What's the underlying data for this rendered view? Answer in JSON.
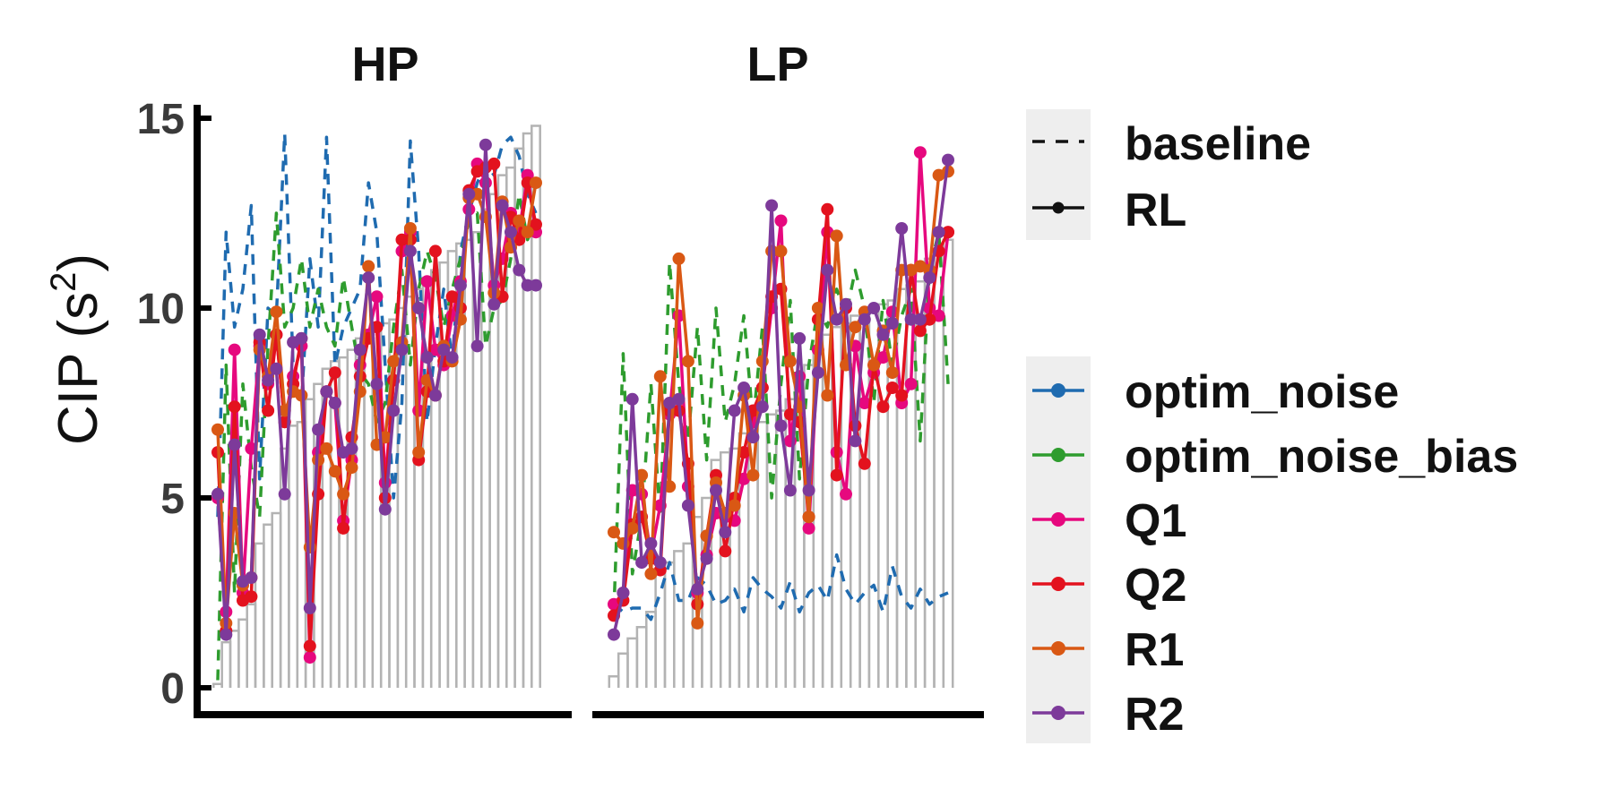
{
  "chart_data": {
    "type": "line",
    "ylabel_main": "CIP (s",
    "ylabel_sup": "2",
    "ylabel_close": ")",
    "ylim": [
      0,
      15
    ],
    "yticks": [
      0,
      5,
      10,
      15
    ],
    "ytick_labels": [
      "0",
      "5",
      "10",
      "15"
    ],
    "panels": [
      {
        "title": "HP",
        "bars": [
          0.1,
          1.2,
          1.5,
          1.8,
          2.2,
          3.8,
          4.3,
          4.6,
          6.3,
          6.9,
          7.0,
          7.6,
          8.0,
          8.4,
          8.6,
          8.7,
          8.9,
          9.2,
          9.3,
          9.5,
          9.6,
          9.7,
          10.0,
          10.3,
          10.5,
          10.8,
          11.0,
          11.2,
          11.5,
          11.7,
          11.8,
          12.0,
          12.6,
          13.0,
          13.5,
          13.7,
          14.2,
          14.6,
          14.8
        ],
        "series": [
          {
            "name": "optim_noise",
            "style": "dashed",
            "values": [
              4.5,
              12.0,
              9.5,
              10.5,
              12.7,
              5.5,
              10.0,
              9.8,
              14.6,
              8.5,
              7.5,
              11.3,
              9.5,
              14.5,
              8.5,
              9.5,
              10.0,
              10.5,
              13.3,
              12.0,
              8.5,
              5.0,
              7.5,
              14.4,
              11.5,
              7.0,
              9.0,
              10.5,
              8.6,
              11.5,
              12.5,
              13.3,
              13.8,
              13.5,
              14.3,
              14.5,
              14.0,
              13.0,
              12.5
            ]
          },
          {
            "name": "optim_noise_bias",
            "style": "dashed",
            "values": [
              0.2,
              8.5,
              2.5,
              8.0,
              5.8,
              4.5,
              9.0,
              12.5,
              9.5,
              10.0,
              11.3,
              9.5,
              10.5,
              9.5,
              9.0,
              10.8,
              9.5,
              8.3,
              8.0,
              7.0,
              7.5,
              9.5,
              11.0,
              8.5,
              10.5,
              11.5,
              10.8,
              9.5,
              10.5,
              11.3,
              12.3,
              12.5,
              9.0,
              10.0,
              10.2,
              11.3,
              13.0,
              11.8,
              12.3
            ]
          },
          {
            "name": "Q1",
            "style": "solid",
            "values": [
              5.0,
              2.0,
              8.9,
              2.5,
              6.3,
              9.0,
              8.0,
              9.3,
              7.0,
              8.2,
              9.0,
              0.8,
              6.2,
              7.8,
              7.5,
              4.4,
              6.0,
              8.5,
              9.3,
              10.3,
              5.4,
              8.1,
              11.5,
              12.0,
              7.3,
              10.7,
              8.9,
              8.5,
              9.8,
              10.7,
              12.6,
              13.8,
              13.3,
              10.6,
              11.3,
              12.5,
              12.0,
              13.5,
              12.0
            ]
          },
          {
            "name": "Q2",
            "style": "solid",
            "values": [
              6.2,
              1.5,
              7.4,
              2.3,
              2.4,
              9.1,
              7.3,
              9.3,
              7.0,
              8.0,
              9.2,
              1.1,
              5.1,
              7.8,
              8.3,
              4.2,
              6.6,
              8.2,
              9.2,
              9.5,
              5.0,
              8.1,
              11.8,
              11.8,
              6.0,
              7.8,
              11.5,
              8.6,
              10.3,
              10.0,
              13.1,
              13.6,
              13.7,
              13.8,
              10.3,
              12.4,
              11.8,
              13.3,
              12.2
            ]
          },
          {
            "name": "R1",
            "style": "solid",
            "values": [
              6.8,
              1.7,
              4.6,
              2.7,
              2.9,
              8.9,
              8.2,
              9.9,
              7.3,
              7.8,
              7.7,
              3.7,
              6.0,
              6.3,
              5.7,
              5.1,
              5.8,
              7.8,
              11.1,
              6.4,
              6.6,
              8.6,
              9.1,
              12.1,
              6.2,
              8.1,
              7.7,
              9.0,
              8.6,
              9.7,
              12.9,
              13.0,
              12.4,
              10.4,
              12.8,
              11.6,
              12.3,
              12.0,
              13.3
            ]
          },
          {
            "name": "R2",
            "style": "solid",
            "values": [
              5.1,
              1.4,
              6.4,
              2.8,
              2.9,
              9.3,
              8.1,
              8.4,
              5.1,
              9.1,
              9.2,
              2.1,
              6.8,
              7.8,
              7.5,
              6.2,
              6.3,
              8.9,
              10.8,
              8.0,
              4.7,
              7.3,
              8.9,
              11.5,
              10.0,
              8.7,
              7.7,
              8.9,
              8.7,
              10.6,
              13.0,
              9.0,
              14.3,
              10.1,
              12.7,
              12.0,
              11.0,
              10.6,
              10.6
            ]
          }
        ]
      },
      {
        "title": "LP",
        "bars": [
          0.3,
          0.9,
          1.3,
          1.6,
          2.0,
          3.0,
          3.3,
          3.6,
          3.8,
          4.5,
          5.0,
          6.0,
          6.2,
          6.3,
          6.7,
          6.8,
          7.0,
          7.2,
          7.3,
          7.6,
          8.0,
          8.5,
          9.0,
          9.3,
          9.5,
          9.6,
          9.8,
          9.8,
          10.0,
          10.1,
          10.2,
          10.5,
          10.6,
          10.7,
          11.3,
          11.5,
          11.8
        ],
        "series": [
          {
            "name": "optim_noise",
            "style": "dashed",
            "values": [
              2.2,
              2.0,
              2.1,
              2.1,
              1.8,
              2.5,
              3.3,
              2.3,
              2.3,
              2.9,
              2.7,
              2.2,
              2.3,
              2.6,
              2.0,
              2.9,
              2.6,
              2.4,
              2.1,
              2.8,
              2.0,
              2.5,
              2.7,
              2.3,
              3.5,
              2.6,
              2.2,
              2.5,
              2.7,
              2.0,
              3.2,
              2.4,
              2.1,
              2.6,
              2.2,
              2.4,
              2.5
            ]
          },
          {
            "name": "optim_noise_bias",
            "style": "dashed",
            "values": [
              2.0,
              8.8,
              3.0,
              4.5,
              8.0,
              4.5,
              11.2,
              8.0,
              6.5,
              9.5,
              6.0,
              10.0,
              7.0,
              8.0,
              9.8,
              7.0,
              9.5,
              5.0,
              8.0,
              10.2,
              5.5,
              8.5,
              10.0,
              9.5,
              10.5,
              9.8,
              11.0,
              10.0,
              7.5,
              10.2,
              8.5,
              9.8,
              10.5,
              6.5,
              11.0,
              12.0,
              8.0
            ]
          },
          {
            "name": "Q1",
            "style": "solid",
            "values": [
              2.2,
              2.5,
              5.2,
              5.1,
              3.5,
              4.8,
              7.2,
              9.8,
              5.3,
              2.5,
              3.5,
              4.6,
              4.5,
              4.4,
              5.5,
              7.0,
              7.9,
              10.0,
              12.3,
              6.5,
              8.2,
              4.2,
              8.9,
              12.0,
              6.2,
              5.1,
              9.0,
              7.5,
              8.3,
              8.7,
              9.9,
              7.5,
              8.0,
              14.1,
              10.0,
              9.8,
              12.0
            ]
          },
          {
            "name": "Q2",
            "style": "solid",
            "values": [
              1.9,
              2.3,
              4.3,
              4.5,
              3.4,
              3.1,
              7.3,
              7.3,
              5.9,
              2.2,
              4.0,
              5.6,
              3.6,
              5.0,
              6.2,
              7.3,
              7.9,
              10.3,
              10.5,
              7.2,
              7.0,
              4.5,
              9.7,
              12.6,
              5.6,
              10.0,
              6.9,
              5.9,
              8.5,
              7.4,
              7.9,
              7.7,
              11.0,
              9.4,
              9.7,
              11.5,
              12.0
            ]
          },
          {
            "name": "R1",
            "style": "solid",
            "values": [
              4.1,
              3.8,
              4.2,
              5.6,
              3.0,
              8.2,
              5.3,
              11.3,
              8.6,
              1.7,
              4.0,
              5.4,
              4.6,
              4.8,
              7.7,
              5.6,
              8.6,
              11.5,
              11.5,
              8.6,
              7.4,
              4.5,
              10.0,
              7.7,
              11.9,
              8.5,
              9.5,
              9.9,
              8.5,
              9.4,
              8.3,
              11.0,
              11.0,
              11.1,
              11.0,
              13.5,
              13.6
            ]
          },
          {
            "name": "R2",
            "style": "solid",
            "values": [
              1.4,
              2.5,
              7.6,
              3.3,
              3.8,
              3.3,
              7.5,
              7.6,
              4.8,
              2.6,
              3.4,
              5.2,
              4.1,
              7.3,
              7.9,
              6.6,
              7.4,
              12.7,
              6.9,
              5.2,
              9.2,
              5.2,
              8.3,
              11.0,
              9.7,
              10.1,
              6.5,
              9.7,
              10.0,
              9.3,
              9.6,
              12.1,
              9.7,
              9.7,
              10.8,
              12.0,
              13.9
            ]
          }
        ]
      }
    ],
    "colors": {
      "optim_noise": "#1f6bb0",
      "optim_noise_bias": "#2e9c2e",
      "Q1": "#e6087e",
      "Q2": "#e3121e",
      "R1": "#d95814",
      "R2": "#7d3a9a",
      "bars": "#b3b3b3",
      "legend_bg": "#eeeeee"
    },
    "legend_linetype": [
      {
        "label": "baseline",
        "style": "dashed"
      },
      {
        "label": "RL",
        "style": "solid-point"
      }
    ],
    "legend_model": [
      "optim_noise",
      "optim_noise_bias",
      "Q1",
      "Q2",
      "R1",
      "R2"
    ]
  }
}
